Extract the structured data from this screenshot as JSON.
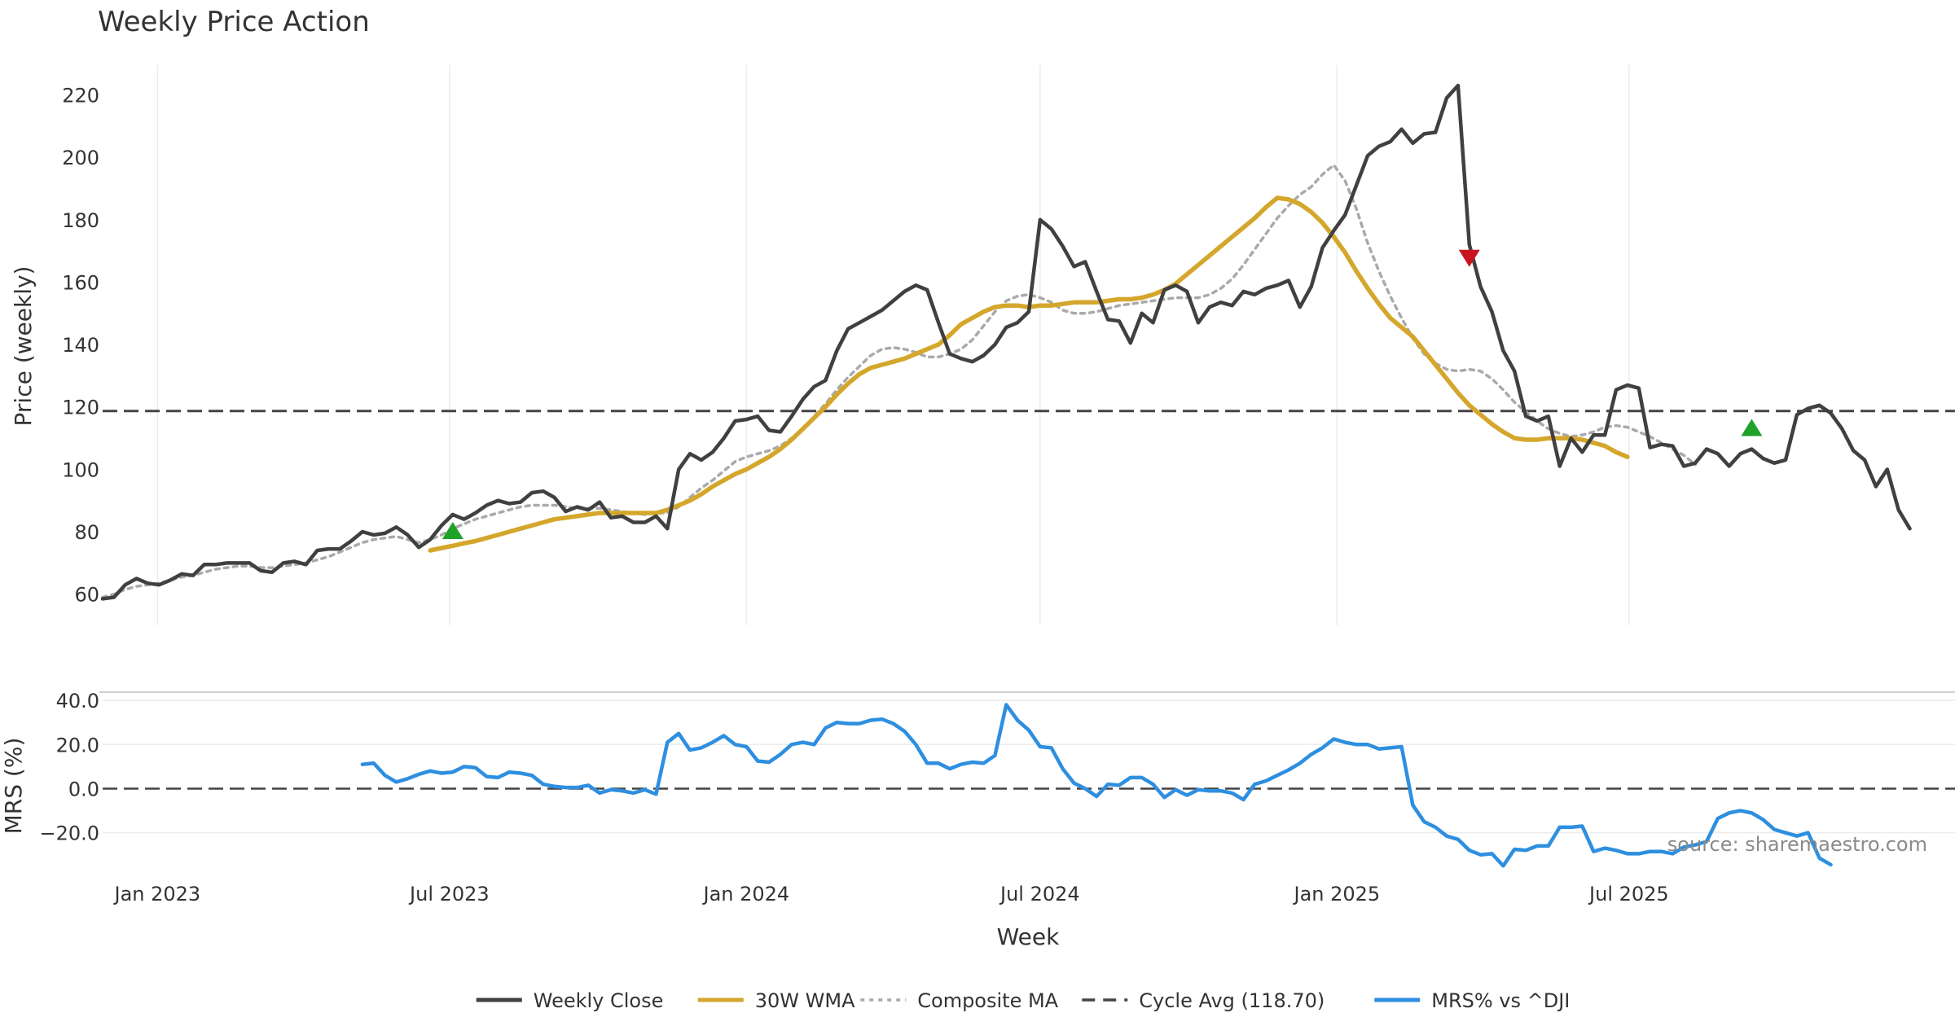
{
  "colors": {
    "weekly_close": "#404040",
    "wma30": "#d4a72c",
    "composite": "#aaaaaa",
    "cycle": "#444444",
    "mrs": "#2e8fe0",
    "buy": "#1fa22a",
    "sell": "#c8141e"
  },
  "chart_data": [
    {
      "type": "line",
      "title": "Weekly Price Action",
      "ylabel": "Price (weekly)",
      "xlabel": "",
      "x_start": "2022-11-28",
      "x_step_days": 7,
      "xlim": [
        "2022-11-28",
        "2026-01-19"
      ],
      "ylim": [
        50,
        229
      ],
      "yticks": [
        60,
        80,
        100,
        120,
        140,
        160,
        180,
        200,
        220
      ],
      "xticks": [
        {
          "date": "2023-01-01",
          "label": "Jan 2023"
        },
        {
          "date": "2023-07-01",
          "label": "Jul 2023"
        },
        {
          "date": "2024-01-01",
          "label": "Jan 2024"
        },
        {
          "date": "2024-07-01",
          "label": "Jul 2024"
        },
        {
          "date": "2025-01-01",
          "label": "Jan 2025"
        },
        {
          "date": "2025-07-01",
          "label": "Jul 2025"
        }
      ],
      "hline": {
        "name": "Cycle Avg (118.70)",
        "value": 118.7
      },
      "series": [
        {
          "name": "Weekly Close",
          "values": [
            58.5,
            59,
            63,
            65,
            63.5,
            63,
            64.5,
            66.5,
            66,
            69.5,
            69.5,
            70,
            70,
            70,
            67.5,
            67,
            70,
            70.5,
            69.5,
            74,
            74.5,
            74.5,
            77,
            80,
            79,
            79.5,
            81.5,
            79,
            75,
            77.5,
            82,
            85.5,
            84,
            86,
            88.5,
            90,
            89,
            89.5,
            92.5,
            93,
            91,
            86.5,
            88,
            87,
            89.5,
            84.5,
            85,
            83,
            83,
            85,
            81,
            100,
            105,
            103,
            105.5,
            110,
            115.5,
            116,
            117,
            112.5,
            112,
            117,
            122.5,
            126.5,
            128.5,
            138,
            145,
            147,
            149,
            151,
            154,
            157,
            159,
            157.5,
            147,
            137,
            135.5,
            134.5,
            136.5,
            140,
            145.5,
            147,
            150.5,
            180,
            177,
            171.5,
            165,
            166.5,
            157,
            148,
            147.5,
            140.5,
            150,
            147,
            157.5,
            159,
            157,
            147,
            152,
            153.5,
            152.5,
            157,
            156,
            158,
            159,
            160.5,
            152,
            158.5,
            171,
            176.5,
            181.5,
            191,
            200.5,
            203.5,
            205,
            209,
            204.5,
            207.5,
            208,
            219,
            223,
            172,
            158.5,
            150.5,
            138,
            131.5,
            117,
            115.5,
            117,
            101,
            110,
            105.5,
            111,
            111,
            125.5,
            127,
            126,
            107,
            108,
            107.5,
            101,
            102,
            106.5,
            105,
            101,
            105,
            106.5,
            103.5,
            102,
            103,
            117.5,
            119.5,
            120.5,
            118,
            113,
            106,
            103,
            94.5,
            100,
            87,
            81
          ]
        },
        {
          "name": "30W WMA",
          "start_index": 29,
          "values": [
            74,
            74.8,
            75.5,
            76.3,
            77,
            78,
            79,
            80,
            81,
            82,
            83,
            84,
            84.5,
            85,
            85.5,
            86,
            86,
            86,
            86,
            86,
            86,
            87,
            88.5,
            90,
            92,
            94.5,
            96.5,
            98.5,
            100,
            102,
            104,
            106.5,
            109.5,
            113,
            116.5,
            120,
            124,
            127.5,
            130.5,
            132.5,
            133.5,
            134.5,
            135.5,
            137,
            138.5,
            140,
            143,
            146.5,
            148.5,
            150.5,
            152,
            152.5,
            152.5,
            152,
            152.5,
            152.5,
            153,
            153.5,
            153.5,
            153.5,
            154,
            154.5,
            154.5,
            155,
            156,
            157.5,
            159.5,
            162.5,
            165.5,
            168.5,
            171.5,
            174.5,
            177.5,
            180.5,
            184,
            187,
            186.5,
            185,
            182.5,
            179,
            174.5,
            169.5,
            163.5,
            158,
            153,
            148.5,
            145.5,
            142.5,
            138,
            133.5,
            129,
            124.5,
            120.5,
            117.5,
            114.5,
            112,
            110,
            109.5,
            109.5,
            110,
            110,
            110,
            109.5,
            108.5,
            107.5,
            105.5,
            104
          ]
        },
        {
          "name": "Composite MA",
          "values": [
            59,
            60,
            61.5,
            62.5,
            63,
            63.5,
            64.5,
            65.5,
            66,
            67,
            68,
            68.5,
            69,
            69,
            68.5,
            68.5,
            69,
            69.5,
            70,
            71,
            72,
            73.5,
            75,
            76.5,
            77.5,
            78,
            78.5,
            77.5,
            76.5,
            77.5,
            79,
            81,
            82.5,
            84,
            85,
            86,
            87,
            88,
            88.5,
            88.5,
            88.5,
            88,
            87.5,
            87.5,
            87.5,
            87,
            86.5,
            86,
            85.5,
            86,
            86,
            88,
            91,
            94,
            96.5,
            99.5,
            102.5,
            104,
            105,
            106,
            107.5,
            110,
            113,
            117,
            121,
            125.5,
            129.5,
            133,
            136.5,
            138.5,
            139,
            138.5,
            137.5,
            136,
            136,
            137,
            138.5,
            141.5,
            146,
            150.5,
            154,
            155.5,
            156,
            155,
            153.5,
            151,
            150,
            150,
            150.5,
            151.5,
            152.5,
            153,
            153.5,
            154,
            154.5,
            155,
            155,
            155,
            156,
            158,
            161,
            165.5,
            170.5,
            175.5,
            180.5,
            184.5,
            188,
            190.5,
            194.5,
            197.5,
            192.5,
            183.5,
            172.5,
            163.5,
            155.5,
            148.5,
            142,
            137,
            134,
            132,
            131.5,
            132,
            131.5,
            129,
            125.5,
            121.5,
            118.5,
            115.5,
            113,
            111.5,
            110.5,
            111,
            112,
            113.5,
            114,
            113.5,
            112,
            110.5,
            108.5,
            106.5,
            104.5,
            101.5
          ]
        }
      ],
      "markers": [
        {
          "type": "buy",
          "x_index": 31,
          "y": 80
        },
        {
          "type": "sell",
          "x_index": 121,
          "y": 168
        },
        {
          "type": "buy",
          "x_index": 146,
          "y": 113
        }
      ]
    },
    {
      "type": "line",
      "title": "",
      "ylabel": "MRS (%)",
      "xlabel": "Week",
      "x_start": "2022-11-28",
      "x_step_days": 7,
      "xlim": [
        "2022-11-28",
        "2026-01-19"
      ],
      "ylim": [
        -36,
        43
      ],
      "yticks": [
        40.0,
        20.0,
        0.0,
        -20.0
      ],
      "ytick_labels": [
        "40.0",
        "20.0",
        "0.0",
        "−20.0"
      ],
      "xticks": [
        {
          "date": "2023-01-01",
          "label": "Jan 2023"
        },
        {
          "date": "2023-07-01",
          "label": "Jul 2023"
        },
        {
          "date": "2024-01-01",
          "label": "Jan 2024"
        },
        {
          "date": "2024-07-01",
          "label": "Jul 2024"
        },
        {
          "date": "2025-01-01",
          "label": "Jan 2025"
        },
        {
          "date": "2025-07-01",
          "label": "Jul 2025"
        }
      ],
      "hline": {
        "value": 0
      },
      "series": [
        {
          "name": "MRS% vs ^DJI",
          "start_index": 23,
          "values": [
            11,
            11.5,
            6,
            3,
            4.5,
            6.5,
            8,
            7,
            7.5,
            10,
            9.5,
            5.5,
            5,
            7.5,
            7,
            6,
            2,
            1,
            0.5,
            0.5,
            1.5,
            -2,
            -0.5,
            -1,
            -2,
            -0.5,
            -2.5,
            21,
            25,
            17.5,
            18.5,
            21,
            24,
            20,
            19,
            12.5,
            12,
            15.5,
            20,
            21,
            20,
            27.5,
            30,
            29.5,
            29.5,
            31,
            31.5,
            29.5,
            26,
            20,
            11.5,
            11.5,
            9,
            11,
            12,
            11.5,
            15,
            38,
            31,
            26.5,
            19,
            18.5,
            9,
            2.5,
            0,
            -3.5,
            2,
            1.5,
            5,
            5,
            2,
            -4,
            -0.5,
            -3,
            -0.5,
            -1,
            -1,
            -2,
            -5,
            2,
            3.5,
            6,
            8.5,
            11.5,
            15.5,
            18.5,
            22.5,
            21,
            20,
            20,
            18,
            18.5,
            19,
            -7.5,
            -15,
            -17.5,
            -21.5,
            -23,
            -28,
            -30,
            -29.5,
            -35,
            -27.5,
            -28,
            -26,
            -26,
            -17.5,
            -17.5,
            -17,
            -28.5,
            -27,
            -28,
            -29.5,
            -29.5,
            -28.5,
            -28.5,
            -29.5,
            -26.5,
            -25.5,
            -24,
            -13.5,
            -11,
            -10,
            -11,
            -14,
            -18.5,
            -20,
            -21.5,
            -20,
            -31.5,
            -34.5
          ]
        }
      ]
    }
  ],
  "legend": {
    "position": "bottom-center",
    "items": [
      {
        "label": "Weekly Close",
        "style": "solid",
        "color_key": "weekly_close"
      },
      {
        "label": "30W WMA",
        "style": "solid",
        "color_key": "wma30"
      },
      {
        "label": "Composite MA",
        "style": "dotted",
        "color_key": "composite"
      },
      {
        "label": "Cycle Avg (118.70)",
        "style": "dashed",
        "color_key": "cycle"
      },
      {
        "label": "MRS% vs ^DJI",
        "style": "solid",
        "color_key": "mrs"
      }
    ]
  },
  "source_note": "source: sharemaestro.com"
}
